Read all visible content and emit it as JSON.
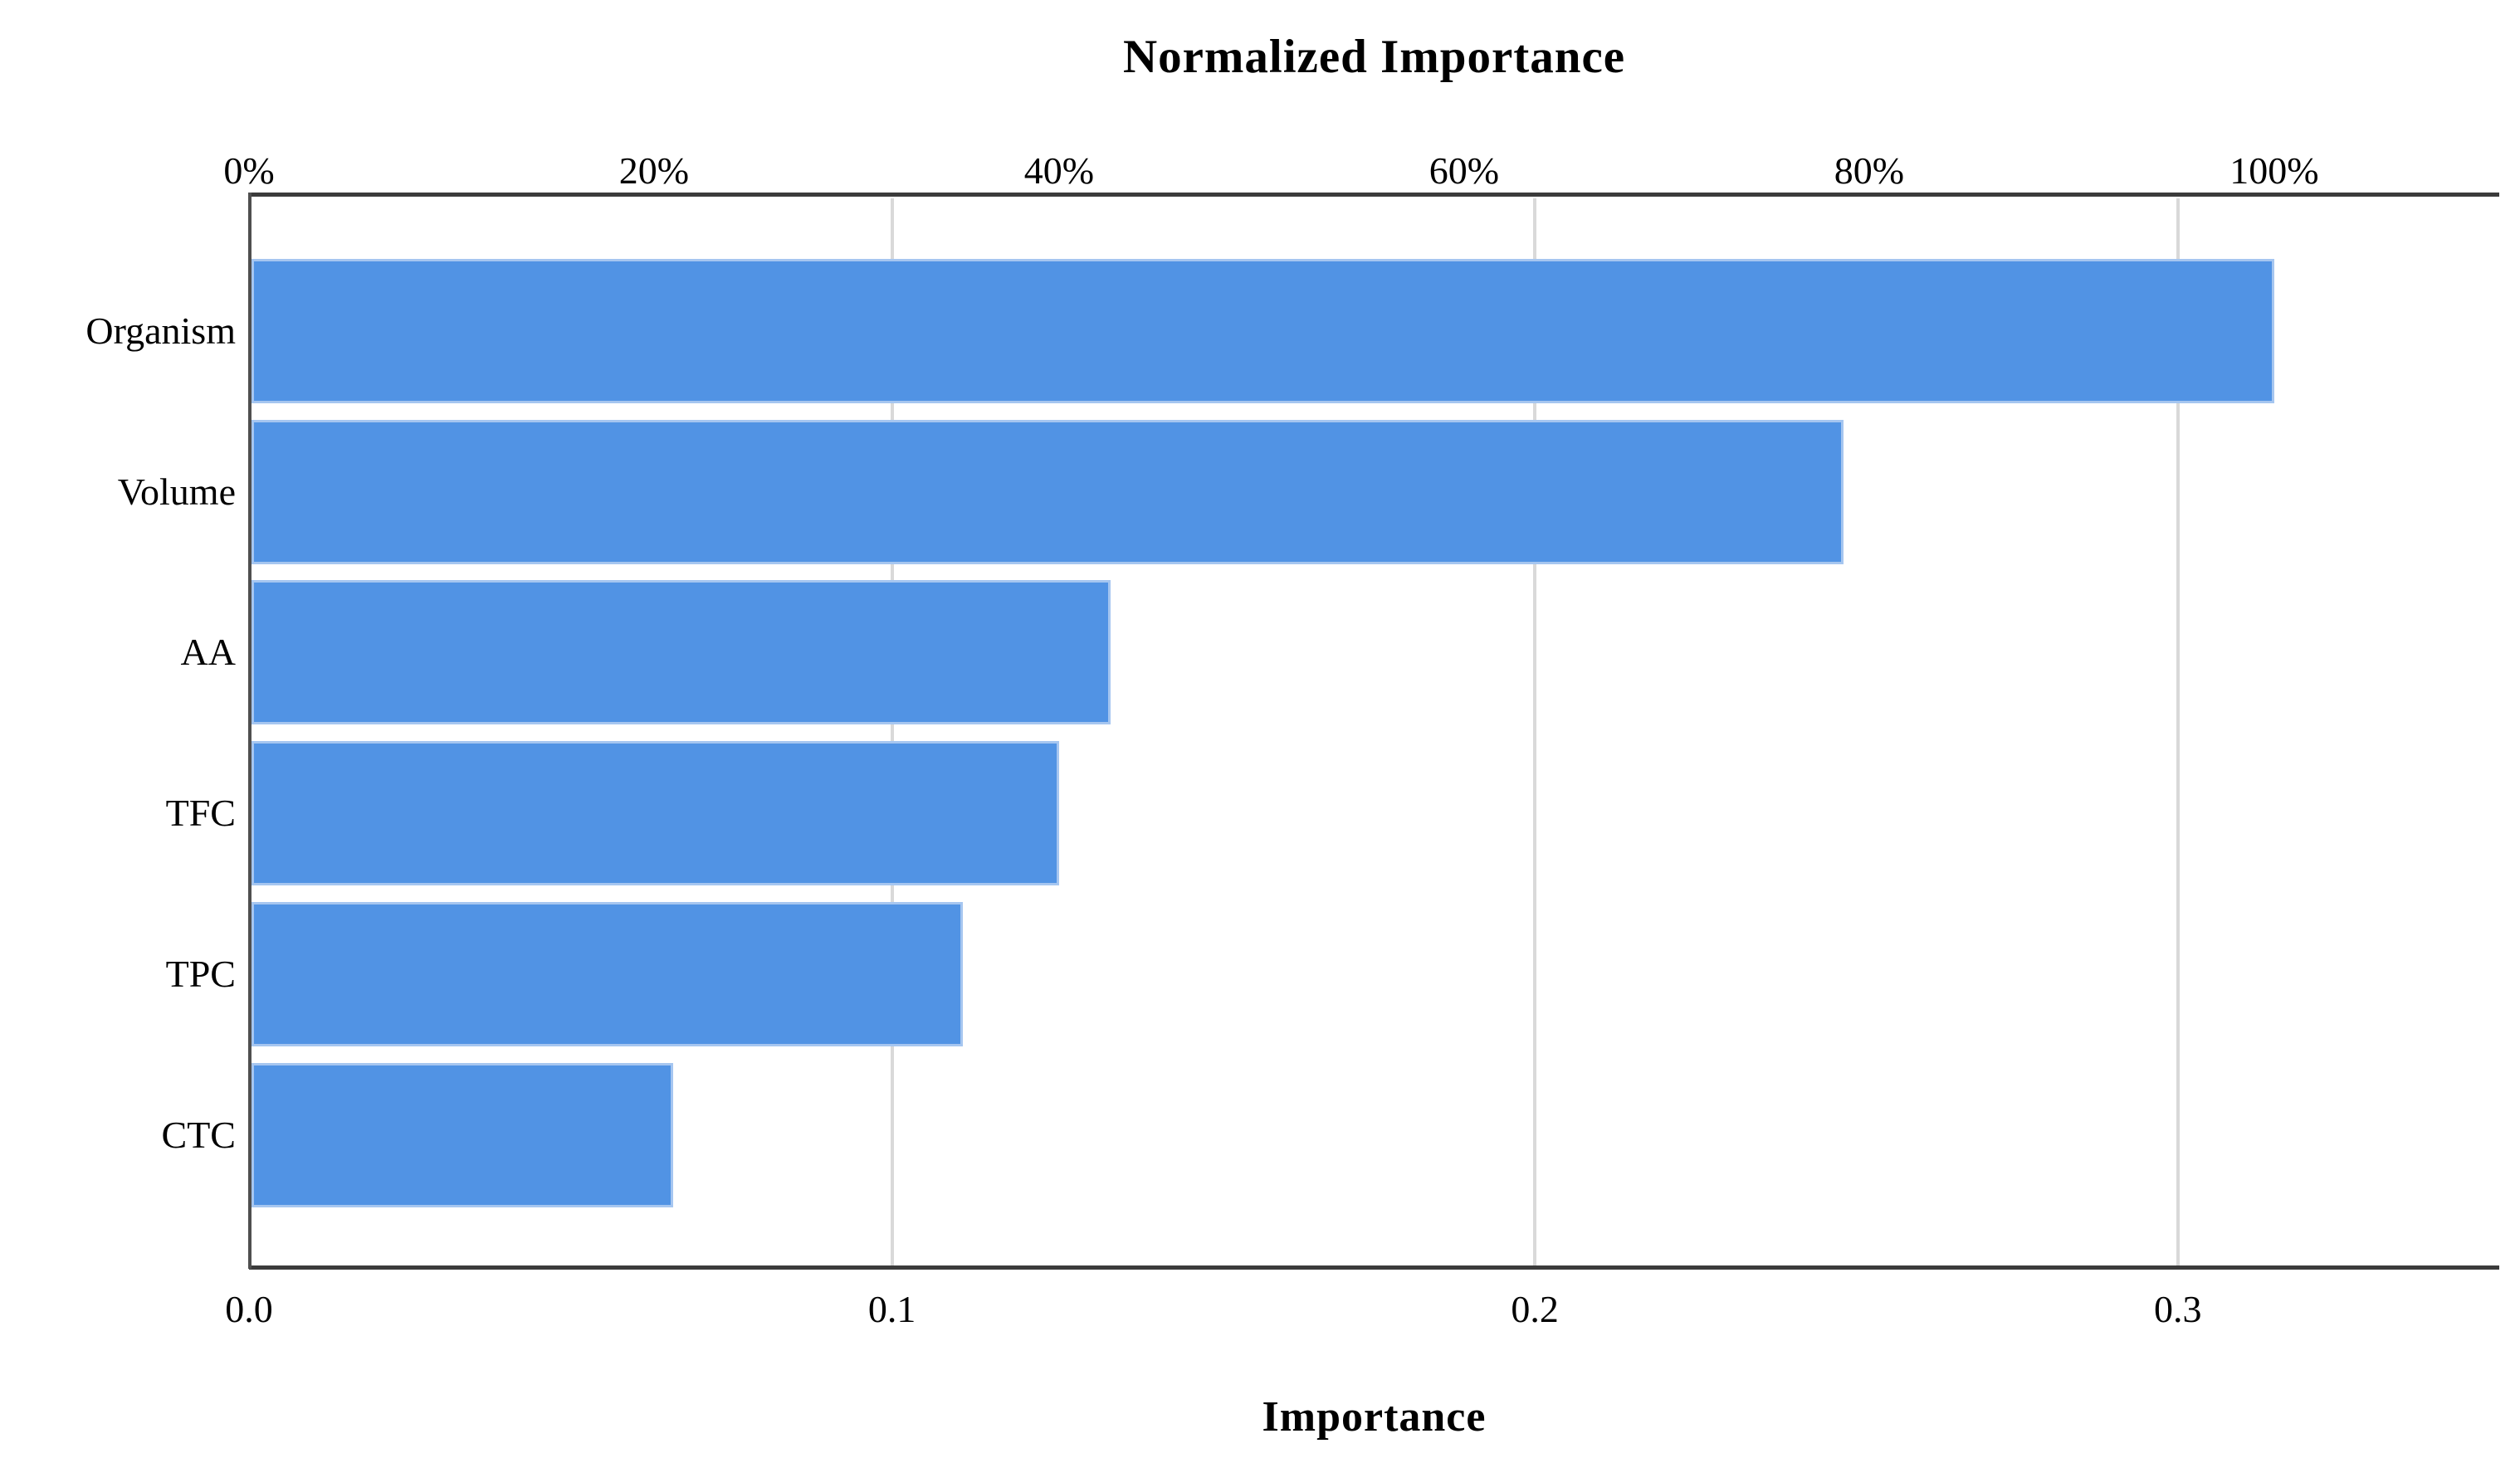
{
  "chart_data": {
    "type": "bar",
    "orientation": "horizontal",
    "title": "Normalized Importance",
    "xlabel": "Importance",
    "categories": [
      "Organism",
      "Volume",
      "AA",
      "TFC",
      "TPC",
      "CTC"
    ],
    "values": [
      0.315,
      0.248,
      0.134,
      0.126,
      0.111,
      0.066
    ],
    "normalized_percent": [
      100,
      78.7,
      42.5,
      40.0,
      35.2,
      21.0
    ],
    "top_axis": {
      "title": "Normalized Importance",
      "tick_percents": [
        0,
        20,
        40,
        60,
        80,
        100
      ],
      "tick_labels": [
        "0%",
        "20%",
        "40%",
        "60%",
        "80%",
        "100%"
      ]
    },
    "bottom_axis": {
      "title": "Importance",
      "tick_values": [
        0.0,
        0.1,
        0.2,
        0.3
      ],
      "tick_labels": [
        "0.0",
        "0.1",
        "0.2",
        "0.3"
      ],
      "range": [
        0,
        0.35
      ]
    },
    "grid": {
      "vertical_gridlines_at": [
        0.1,
        0.2,
        0.3
      ],
      "horizontal": false
    },
    "legend": "none",
    "colors": {
      "bar_fill": "#5193e4",
      "bar_edge": "#a6c6f0",
      "plot_border": "#3b3b3b",
      "left_axis": "#4f4f4f",
      "gridline": "#d9d9d9",
      "text": "#000000",
      "background": "#ffffff"
    }
  }
}
